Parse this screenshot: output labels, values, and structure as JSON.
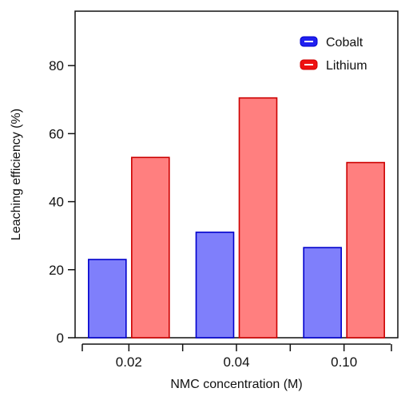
{
  "chart_data": {
    "type": "bar",
    "categories": [
      "0.02",
      "0.04",
      "0.10"
    ],
    "series": [
      {
        "name": "Cobalt",
        "values": [
          23,
          31,
          26.5
        ],
        "color": "#7f7ffb",
        "stroke": "#0000cc",
        "legend_color": "#2020f0"
      },
      {
        "name": "Lithium",
        "values": [
          53,
          70.5,
          51.5
        ],
        "color": "#ff7f7f",
        "stroke": "#cc0000",
        "legend_color": "#ee1111"
      }
    ],
    "xlabel": "NMC concentration (M)",
    "ylabel": "Leaching efficiency (%)",
    "ylim": [
      0,
      96
    ],
    "yticks": [
      0,
      20,
      40,
      60,
      80
    ],
    "legend_position": "top-right",
    "grid": false
  }
}
